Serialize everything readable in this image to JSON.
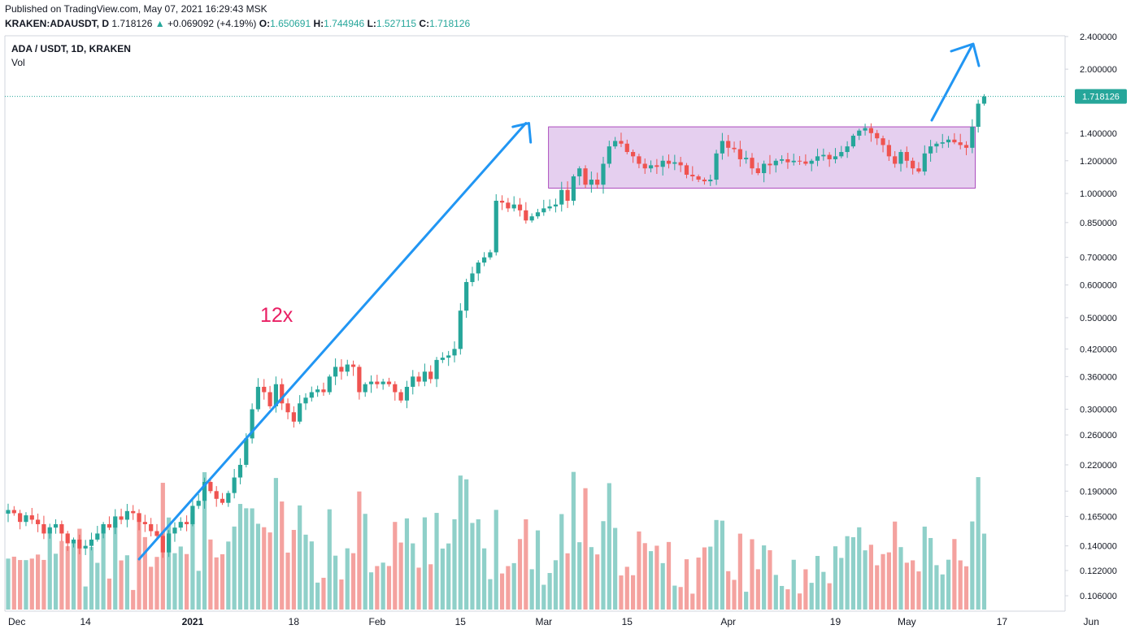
{
  "header": {
    "published": "Published on TradingView.com, May 07, 2021 16:29:43 MSK",
    "symbol": "KRAKEN:ADAUSDT, D",
    "last": "1.718126",
    "change": "+0.069092 (+4.19%)",
    "o_label": "O:",
    "o": "1.650691",
    "h_label": "H:",
    "h": "1.744946",
    "l_label": "L:",
    "l": "1.527115",
    "c_label": "C:",
    "c": "1.718126",
    "up_arrow": "▲"
  },
  "legend": {
    "title": "ADA / USDT, 1D, KRAKEN",
    "vol": "Vol"
  },
  "colors": {
    "up": "#26a69a",
    "down": "#ef5350",
    "up_vol": "#8fd0c9",
    "down_vol": "#f4a29f",
    "arrow": "#2196f3",
    "range_fill": "#e1c7ec",
    "range_stroke": "#9c27b0",
    "annotation": "#e91e63"
  },
  "chart_data": {
    "type": "candlestick",
    "title": "ADA / USDT, 1D, KRAKEN",
    "y_scale": "log",
    "ylim": [
      0.095,
      2.5
    ],
    "y_ticks": [
      0.106,
      0.122,
      0.14,
      0.165,
      0.19,
      0.22,
      0.26,
      0.3,
      0.36,
      0.42,
      0.5,
      0.6,
      0.7,
      0.85,
      1.0,
      1.2,
      1.4,
      2.0,
      2.4
    ],
    "y_tick_labels": [
      "0.106000",
      "0.122000",
      "0.140000",
      "0.165000",
      "0.190000",
      "0.220000",
      "0.260000",
      "0.300000",
      "0.360000",
      "0.420000",
      "0.500000",
      "0.600000",
      "0.700000",
      "0.850000",
      "1.000000",
      "1.200000",
      "1.400000",
      "2.000000",
      "2.400000"
    ],
    "x_labels": [
      "Dec",
      "14",
      "2021",
      "18",
      "Feb",
      "15",
      "Mar",
      "15",
      "Apr",
      "19",
      "May",
      "17",
      "Jun"
    ],
    "x_label_days": [
      0,
      13,
      31,
      48,
      62,
      76,
      90,
      104,
      121,
      139,
      151,
      167,
      182
    ],
    "last_price": 1.718126,
    "last_price_label": "1.718126",
    "closes": [
      0.171,
      0.168,
      0.16,
      0.166,
      0.162,
      0.158,
      0.15,
      0.155,
      0.158,
      0.15,
      0.142,
      0.145,
      0.138,
      0.14,
      0.145,
      0.15,
      0.158,
      0.155,
      0.165,
      0.162,
      0.17,
      0.168,
      0.16,
      0.158,
      0.152,
      0.148,
      0.135,
      0.15,
      0.155,
      0.16,
      0.158,
      0.175,
      0.18,
      0.2,
      0.19,
      0.182,
      0.178,
      0.188,
      0.205,
      0.22,
      0.255,
      0.3,
      0.34,
      0.33,
      0.305,
      0.345,
      0.31,
      0.295,
      0.28,
      0.31,
      0.32,
      0.33,
      0.335,
      0.33,
      0.36,
      0.38,
      0.37,
      0.385,
      0.38,
      0.33,
      0.345,
      0.35,
      0.345,
      0.35,
      0.345,
      0.33,
      0.315,
      0.34,
      0.36,
      0.35,
      0.37,
      0.355,
      0.395,
      0.4,
      0.405,
      0.42,
      0.52,
      0.61,
      0.64,
      0.68,
      0.7,
      0.72,
      0.96,
      0.95,
      0.92,
      0.94,
      0.91,
      0.86,
      0.88,
      0.9,
      0.92,
      0.93,
      0.94,
      1.02,
      0.96,
      1.1,
      1.15,
      1.05,
      1.08,
      1.05,
      1.18,
      1.3,
      1.34,
      1.32,
      1.26,
      1.23,
      1.18,
      1.15,
      1.17,
      1.16,
      1.2,
      1.18,
      1.19,
      1.17,
      1.11,
      1.1,
      1.08,
      1.07,
      1.08,
      1.25,
      1.34,
      1.29,
      1.28,
      1.21,
      1.22,
      1.15,
      1.12,
      1.18,
      1.17,
      1.2,
      1.21,
      1.19,
      1.2,
      1.195,
      1.18,
      1.2,
      1.23,
      1.24,
      1.21,
      1.23,
      1.26,
      1.3,
      1.38,
      1.42,
      1.44,
      1.4,
      1.36,
      1.31,
      1.23,
      1.18,
      1.26,
      1.2,
      1.15,
      1.13,
      1.25,
      1.3,
      1.32,
      1.33,
      1.35,
      1.33,
      1.31,
      1.29,
      1.45,
      1.65,
      1.718
    ]
  }
}
